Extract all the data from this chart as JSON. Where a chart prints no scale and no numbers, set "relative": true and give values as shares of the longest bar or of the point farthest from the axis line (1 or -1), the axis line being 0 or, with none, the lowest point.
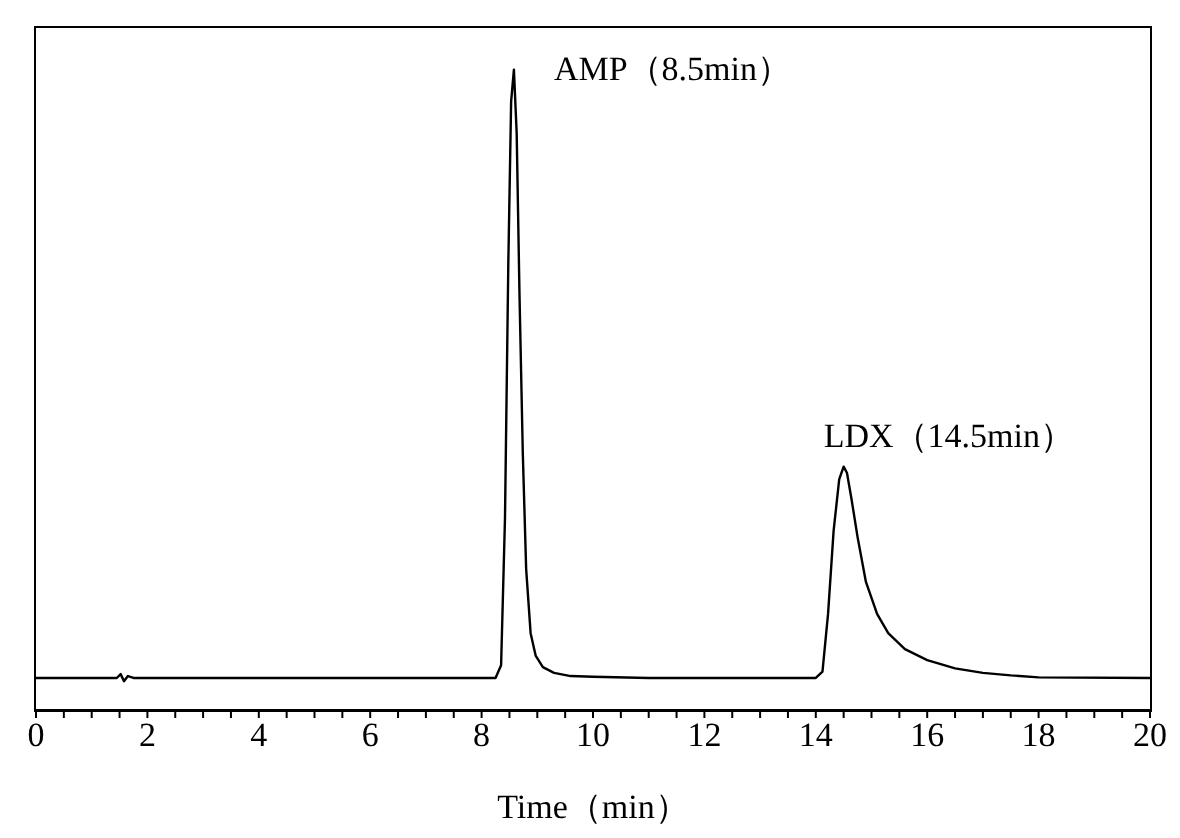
{
  "chart_data": {
    "type": "line",
    "relative": true,
    "xlabel": "Time（min）",
    "xlim": [
      0,
      20
    ],
    "xticks": [
      0,
      {
        "value": 0.5,
        "label": null
      },
      {
        "value": 1,
        "label": null
      },
      {
        "value": 1.5,
        "label": null
      },
      2,
      {
        "value": 2.5,
        "label": null
      },
      {
        "value": 3,
        "label": null
      },
      {
        "value": 3.5,
        "label": null
      },
      4,
      {
        "value": 4.5,
        "label": null
      },
      {
        "value": 5,
        "label": null
      },
      {
        "value": 5.5,
        "label": null
      },
      6,
      {
        "value": 6.5,
        "label": null
      },
      {
        "value": 7,
        "label": null
      },
      {
        "value": 7.5,
        "label": null
      },
      8,
      {
        "value": 8.5,
        "label": null
      },
      {
        "value": 9,
        "label": null
      },
      {
        "value": 9.5,
        "label": null
      },
      10,
      {
        "value": 10.5,
        "label": null
      },
      {
        "value": 11,
        "label": null
      },
      {
        "value": 11.5,
        "label": null
      },
      12,
      {
        "value": 12.5,
        "label": null
      },
      {
        "value": 13,
        "label": null
      },
      {
        "value": 13.5,
        "label": null
      },
      14,
      {
        "value": 14.5,
        "label": null
      },
      {
        "value": 15,
        "label": null
      },
      {
        "value": 15.5,
        "label": null
      },
      16,
      {
        "value": 16.5,
        "label": null
      },
      {
        "value": 17,
        "label": null
      },
      {
        "value": 17.5,
        "label": null
      },
      18,
      {
        "value": 18.5,
        "label": null
      },
      {
        "value": 19,
        "label": null
      },
      {
        "value": 19.5,
        "label": null
      },
      20
    ],
    "x": [
      0,
      1.45,
      1.52,
      1.58,
      1.65,
      1.75,
      8.25,
      8.35,
      8.42,
      8.48,
      8.53,
      8.58,
      8.63,
      8.68,
      8.74,
      8.8,
      8.88,
      8.97,
      9.1,
      9.3,
      9.6,
      10,
      11,
      14,
      14.12,
      14.22,
      14.32,
      14.42,
      14.5,
      14.56,
      14.64,
      14.75,
      14.9,
      15.1,
      15.3,
      15.6,
      16,
      16.5,
      17,
      17.5,
      18,
      20
    ],
    "series": [
      {
        "color": "#000000",
        "values": [
          0.05,
          0.05,
          0.056,
          0.045,
          0.053,
          0.05,
          0.05,
          0.07,
          0.3,
          0.7,
          0.95,
          1,
          0.9,
          0.65,
          0.4,
          0.22,
          0.12,
          0.085,
          0.067,
          0.058,
          0.053,
          0.052,
          0.05,
          0.05,
          0.06,
          0.15,
          0.28,
          0.36,
          0.38,
          0.37,
          0.33,
          0.27,
          0.2,
          0.15,
          0.12,
          0.095,
          0.078,
          0.065,
          0.058,
          0.054,
          0.051,
          0.05
        ]
      }
    ],
    "annotations": [
      {
        "text": "AMP（8.5min）",
        "x": 8.58,
        "y": 1
      },
      {
        "text": "LDX（14.5min）",
        "x": 14.5,
        "y": 0.38
      }
    ],
    "marker": "none",
    "line_style": "solid"
  }
}
